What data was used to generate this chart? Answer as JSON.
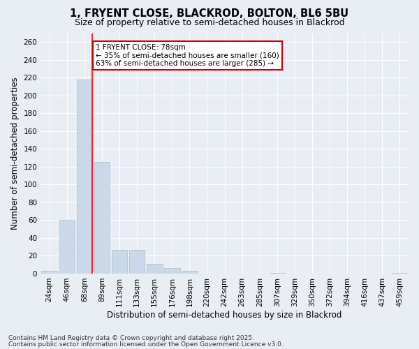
{
  "title_line1": "1, FRYENT CLOSE, BLACKROD, BOLTON, BL6 5BU",
  "title_line2": "Size of property relative to semi-detached houses in Blackrod",
  "xlabel": "Distribution of semi-detached houses by size in Blackrod",
  "ylabel": "Number of semi-detached properties",
  "categories": [
    "24sqm",
    "46sqm",
    "68sqm",
    "89sqm",
    "111sqm",
    "133sqm",
    "155sqm",
    "176sqm",
    "198sqm",
    "220sqm",
    "242sqm",
    "263sqm",
    "285sqm",
    "307sqm",
    "329sqm",
    "350sqm",
    "372sqm",
    "394sqm",
    "416sqm",
    "437sqm",
    "459sqm"
  ],
  "values": [
    3,
    60,
    218,
    125,
    27,
    27,
    11,
    6,
    3,
    0,
    0,
    0,
    0,
    1,
    0,
    0,
    0,
    0,
    0,
    0,
    1
  ],
  "bar_color": "#c9d9e9",
  "bar_edge_color": "#aabcce",
  "red_line_x": 2,
  "annotation_text": "1 FRYENT CLOSE: 78sqm\n← 35% of semi-detached houses are smaller (160)\n63% of semi-detached houses are larger (285) →",
  "annotation_box_color": "#ffffff",
  "annotation_box_edge": "#cc0000",
  "ylim": [
    0,
    270
  ],
  "yticks": [
    0,
    20,
    40,
    60,
    80,
    100,
    120,
    140,
    160,
    180,
    200,
    220,
    240,
    260
  ],
  "footer_line1": "Contains HM Land Registry data © Crown copyright and database right 2025.",
  "footer_line2": "Contains public sector information licensed under the Open Government Licence v3.0.",
  "background_color": "#e8eef4",
  "grid_color": "#ffffff",
  "title_fontsize": 10.5,
  "subtitle_fontsize": 9,
  "axis_label_fontsize": 8.5,
  "tick_fontsize": 7.5,
  "annotation_fontsize": 7.5,
  "footer_fontsize": 6.5
}
